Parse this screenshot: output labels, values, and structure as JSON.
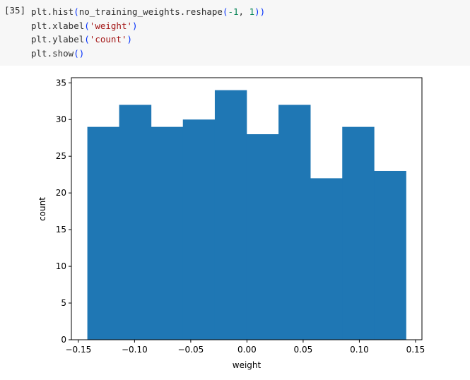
{
  "cell": {
    "prompt": "[35]",
    "code": {
      "line1_call": "plt.hist",
      "line1_open": "(",
      "line1_arg": "no_training_weights.reshape",
      "line1_inner_open": "(",
      "line1_num1": "-1",
      "line1_sep": ", ",
      "line1_num2": "1",
      "line1_close": "))",
      "line2_call": "plt.xlabel",
      "line2_open": "(",
      "line2_str": "'weight'",
      "line2_close": ")",
      "line3_call": "plt.ylabel",
      "line3_open": "(",
      "line3_str": "'count'",
      "line3_close": ")",
      "line4_call": "plt.show",
      "line4_parens": "()"
    }
  },
  "chart_data": {
    "type": "bar",
    "bin_edges": [
      -0.142,
      -0.1137,
      -0.0853,
      -0.057,
      -0.0286,
      -0.0003,
      0.0281,
      0.0564,
      0.0848,
      0.1131,
      0.1415
    ],
    "values": [
      29,
      32,
      29,
      30,
      34,
      28,
      32,
      22,
      29,
      23
    ],
    "xlabel": "weight",
    "ylabel": "count",
    "xlim": [
      -0.1562,
      0.1557
    ],
    "ylim": [
      0,
      35.7
    ],
    "xticks": [
      -0.15,
      -0.1,
      -0.05,
      0.0,
      0.05,
      0.1,
      0.15
    ],
    "xtick_labels": [
      "−0.15",
      "−0.10",
      "−0.05",
      "0.00",
      "0.05",
      "0.10",
      "0.15"
    ],
    "yticks": [
      0,
      5,
      10,
      15,
      20,
      25,
      30,
      35
    ],
    "ytick_labels": [
      "0",
      "5",
      "10",
      "15",
      "20",
      "25",
      "30",
      "35"
    ],
    "bar_color": "#1f77b4",
    "grid": false
  }
}
